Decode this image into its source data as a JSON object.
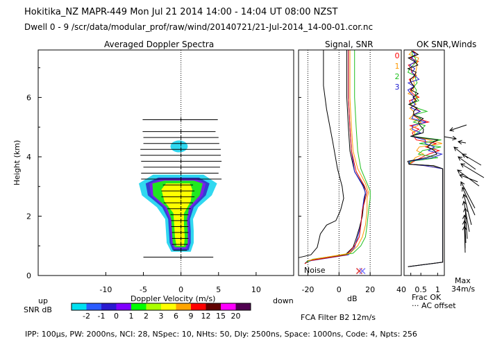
{
  "header": {
    "line1": "Hokitika_NZ  MAPR-449  Mon Jul 21 2014 14:00 - 14:04 UT 08:00 NZST",
    "line2": "Dwell  0 - 9   /scr/data/modular_prof/raw/wind/20140721/21-Jul-2014_14-00-01.cor.nc"
  },
  "footer": {
    "params": "IPP: 100µs,  PW: 2000ns,  NCI: 28,  NSpec: 10, NHts: 50,  Dly: 2500ns,  Space: 1000ns,  Code: 4,  Npts: 256",
    "fca": "FCA Filter B2 12m/s"
  },
  "labels": {
    "up": "up",
    "down": "down",
    "snr_db": "SNR dB",
    "noise": "Noise",
    "frac_ok": "Frac OK",
    "ac_offset": "··· AC offset",
    "max": "Max",
    "max_speed": "34m/s"
  },
  "chart_data": [
    {
      "id": "doppler",
      "type": "heatmap",
      "title": "Averaged Doppler Spectra",
      "xlabel": "Doppler Velocity (m/s)",
      "ylabel": "Height (km)",
      "xlim": [
        -19,
        15
      ],
      "ylim": [
        0,
        7.6
      ],
      "xticks": [
        -10,
        -5,
        0,
        5,
        10
      ],
      "yticks": [
        0,
        2,
        4,
        6
      ],
      "colorbar": {
        "label": "SNR dB",
        "levels": [
          "-2",
          "-1",
          "0",
          "1",
          "2",
          "3",
          "6",
          "9",
          "12",
          "15",
          "20"
        ],
        "colors": [
          "#00e0f0",
          "#2b5cff",
          "#2a1ad0",
          "#8000ff",
          "#00ff00",
          "#aaff00",
          "#ffff00",
          "#ffa500",
          "#ff0000",
          "#600000",
          "#ff00ff",
          "#500050"
        ]
      },
      "blob_levels": [
        {
          "color": "#30d8f0",
          "ranges": [
            [
              0.8,
              -1.3,
              1.3
            ],
            [
              1.1,
              -1.9,
              1.7
            ],
            [
              1.5,
              -2.0,
              1.7
            ],
            [
              1.9,
              -2.1,
              1.6
            ],
            [
              2.3,
              -3.2,
              2.3
            ],
            [
              2.7,
              -5.2,
              4.1
            ],
            [
              3.1,
              -5.6,
              4.8
            ],
            [
              3.4,
              -3.7,
              3.0
            ]
          ]
        },
        {
          "color": "#3040d0",
          "ranges": [
            [
              0.85,
              -1.1,
              1.0
            ],
            [
              1.1,
              -1.5,
              1.3
            ],
            [
              1.5,
              -1.6,
              1.3
            ],
            [
              1.9,
              -1.7,
              1.2
            ],
            [
              2.3,
              -2.5,
              1.7
            ],
            [
              2.7,
              -4.4,
              3.3
            ],
            [
              3.1,
              -4.7,
              3.8
            ],
            [
              3.3,
              -3.0,
              2.4
            ]
          ]
        },
        {
          "color": "#7a20e8",
          "ranges": [
            [
              0.9,
              -0.9,
              0.8
            ],
            [
              1.1,
              -1.3,
              1.1
            ],
            [
              1.5,
              -1.4,
              1.1
            ],
            [
              1.9,
              -1.5,
              1.0
            ],
            [
              2.3,
              -2.2,
              1.4
            ],
            [
              2.7,
              -4.0,
              2.9
            ],
            [
              3.1,
              -4.2,
              3.3
            ],
            [
              3.25,
              -2.6,
              2.0
            ]
          ]
        },
        {
          "color": "#20e820",
          "ranges": [
            [
              0.95,
              -0.8,
              0.6
            ],
            [
              1.1,
              -1.1,
              0.9
            ],
            [
              1.5,
              -1.2,
              0.9
            ],
            [
              1.9,
              -1.3,
              0.8
            ],
            [
              2.3,
              -1.9,
              1.1
            ],
            [
              2.7,
              -3.7,
              2.5
            ],
            [
              3.1,
              -3.8,
              2.9
            ],
            [
              3.2,
              -2.2,
              1.7
            ]
          ]
        },
        {
          "color": "#ffff00",
          "ranges": [
            [
              1.0,
              -0.6,
              0.4
            ],
            [
              1.3,
              -0.8,
              0.5
            ],
            [
              1.7,
              -0.9,
              0.4
            ],
            [
              2.1,
              -1.0,
              0.4
            ],
            [
              2.5,
              -2.2,
              1.3
            ],
            [
              2.9,
              -2.6,
              1.5
            ],
            [
              3.1,
              -2.0,
              1.2
            ]
          ]
        }
      ],
      "upper_blob": {
        "h": [
          4.15,
          4.55
        ],
        "v": [
          -1.4,
          0.9
        ],
        "color": "#30d8f0"
      },
      "spread_bars": [
        {
          "h": 0.62,
          "lo": -5.0,
          "hi": 4.3
        },
        {
          "h": 0.85,
          "lo": -1.0,
          "hi": 0.8
        },
        {
          "h": 1.05,
          "lo": -1.2,
          "hi": 0.9
        },
        {
          "h": 1.25,
          "lo": -1.2,
          "hi": 1.0
        },
        {
          "h": 1.45,
          "lo": -1.2,
          "hi": 1.0
        },
        {
          "h": 1.65,
          "lo": -1.3,
          "hi": 1.0
        },
        {
          "h": 1.85,
          "lo": -1.3,
          "hi": 0.9
        },
        {
          "h": 2.05,
          "lo": -1.4,
          "hi": 1.0
        },
        {
          "h": 2.25,
          "lo": -1.8,
          "hi": 1.3
        },
        {
          "h": 2.45,
          "lo": -2.3,
          "hi": 1.6
        },
        {
          "h": 2.65,
          "lo": -2.6,
          "hi": 1.8
        },
        {
          "h": 2.85,
          "lo": -2.6,
          "hi": 1.8
        },
        {
          "h": 3.05,
          "lo": -2.4,
          "hi": 1.6
        },
        {
          "h": 3.25,
          "lo": -5.3,
          "hi": 5.4
        },
        {
          "h": 3.45,
          "lo": -5.3,
          "hi": 5.0
        },
        {
          "h": 3.65,
          "lo": -5.0,
          "hi": 5.2
        },
        {
          "h": 3.85,
          "lo": -5.3,
          "hi": 5.4
        },
        {
          "h": 4.05,
          "lo": -5.4,
          "hi": 5.3
        },
        {
          "h": 4.25,
          "lo": -5.4,
          "hi": 5.3
        },
        {
          "h": 4.45,
          "lo": -5.0,
          "hi": 5.1
        },
        {
          "h": 4.65,
          "lo": -5.0,
          "hi": 5.0
        },
        {
          "h": 4.85,
          "lo": -5.1,
          "hi": 4.6
        },
        {
          "h": 5.25,
          "lo": -5.1,
          "hi": 4.9
        }
      ]
    },
    {
      "id": "signal",
      "type": "line",
      "title": "Signal, SNR",
      "xlabel": "dB",
      "xlim": [
        -26,
        40
      ],
      "ylim": [
        0,
        7.6
      ],
      "xticks": [
        -20,
        0,
        20,
        40
      ],
      "dotted_x": [
        -20,
        0,
        20
      ],
      "series": [
        {
          "name": "signal",
          "color": "#000000",
          "points": [
            [
              -26,
              0.6
            ],
            [
              -18,
              0.7
            ],
            [
              -14,
              0.95
            ],
            [
              -12,
              1.4
            ],
            [
              -8,
              1.7
            ],
            [
              -2,
              1.85
            ],
            [
              1,
              2.2
            ],
            [
              3,
              2.6
            ],
            [
              2,
              3.0
            ],
            [
              -1,
              3.6
            ],
            [
              -4,
              4.5
            ],
            [
              -8,
              5.6
            ],
            [
              -10,
              6.4
            ],
            [
              -10,
              7.2
            ],
            [
              -10,
              7.6
            ]
          ]
        },
        {
          "name": "snr-black",
          "color": "#000000",
          "points": [
            [
              -22,
              0.4
            ],
            [
              -20,
              0.5
            ],
            [
              4,
              0.7
            ],
            [
              9,
              0.95
            ],
            [
              11,
              1.25
            ],
            [
              13,
              1.6
            ],
            [
              15,
              2.0
            ],
            [
              16,
              2.5
            ],
            [
              17,
              2.75
            ],
            [
              16,
              3.0
            ],
            [
              10,
              3.5
            ],
            [
              7,
              4.2
            ],
            [
              6,
              5.0
            ],
            [
              5,
              6.0
            ],
            [
              5,
              7.6
            ]
          ]
        },
        {
          "name": "snr-blue",
          "color": "#2020d0",
          "points": [
            [
              -21,
              0.45
            ],
            [
              -18,
              0.5
            ],
            [
              6,
              0.7
            ],
            [
              10,
              0.95
            ],
            [
              12,
              1.3
            ],
            [
              14,
              1.7
            ],
            [
              15,
              2.2
            ],
            [
              16,
              2.6
            ],
            [
              17,
              2.8
            ],
            [
              15,
              3.05
            ],
            [
              10,
              3.5
            ],
            [
              8,
              4.2
            ],
            [
              7,
              5.0
            ],
            [
              6,
              6.0
            ],
            [
              6,
              7.6
            ]
          ]
        },
        {
          "name": "snr-red",
          "color": "#e00000",
          "points": [
            [
              -22,
              0.4
            ],
            [
              -19,
              0.5
            ],
            [
              5,
              0.7
            ],
            [
              10,
              1.0
            ],
            [
              13,
              1.3
            ],
            [
              14,
              1.7
            ],
            [
              15,
              2.2
            ],
            [
              17,
              2.6
            ],
            [
              18,
              2.8
            ],
            [
              16,
              3.05
            ],
            [
              11,
              3.5
            ],
            [
              8,
              4.2
            ],
            [
              7,
              5.0
            ],
            [
              6,
              6.0
            ],
            [
              6,
              7.6
            ]
          ]
        },
        {
          "name": "snr-green",
          "color": "#20c020",
          "points": [
            [
              -21,
              0.45
            ],
            [
              -17,
              0.55
            ],
            [
              9,
              0.75
            ],
            [
              14,
              1.0
            ],
            [
              17,
              1.3
            ],
            [
              18,
              1.7
            ],
            [
              19,
              2.2
            ],
            [
              20,
              2.6
            ],
            [
              20,
              2.85
            ],
            [
              18,
              3.1
            ],
            [
              14,
              3.6
            ],
            [
              12,
              4.2
            ],
            [
              11,
              5.0
            ],
            [
              10,
              6.0
            ],
            [
              10,
              7.6
            ]
          ]
        },
        {
          "name": "snr-orange",
          "color": "#ff9900",
          "points": [
            [
              -20,
              0.5
            ],
            [
              -16,
              0.55
            ],
            [
              7,
              0.75
            ],
            [
              12,
              1.0
            ],
            [
              15,
              1.3
            ],
            [
              17,
              1.7
            ],
            [
              18,
              2.2
            ],
            [
              18,
              2.6
            ],
            [
              19,
              2.8
            ],
            [
              17,
              3.1
            ],
            [
              12,
              3.6
            ],
            [
              9,
              4.2
            ],
            [
              8,
              5.0
            ],
            [
              7,
              6.0
            ],
            [
              7,
              7.6
            ]
          ]
        }
      ],
      "markers": [
        {
          "x": 13,
          "y": 0.15,
          "color": "#e04040"
        },
        {
          "x": 15,
          "y": 0.15,
          "color": "#8080ff"
        }
      ]
    },
    {
      "id": "oksnr",
      "type": "line",
      "title": "OK SNR,Winds",
      "xlabel": "Frac OK",
      "xlim": [
        0,
        1.2
      ],
      "ylim": [
        0,
        7.6
      ],
      "xticks": [
        0.5,
        1
      ],
      "tick_labels": [
        "0.5",
        "1"
      ],
      "legend": [
        {
          "label": "0",
          "color": "#ff0000"
        },
        {
          "label": "1",
          "color": "#ff9900"
        },
        {
          "label": "2",
          "color": "#20c020"
        },
        {
          "label": "3",
          "color": "#2020d0"
        }
      ]
    }
  ]
}
